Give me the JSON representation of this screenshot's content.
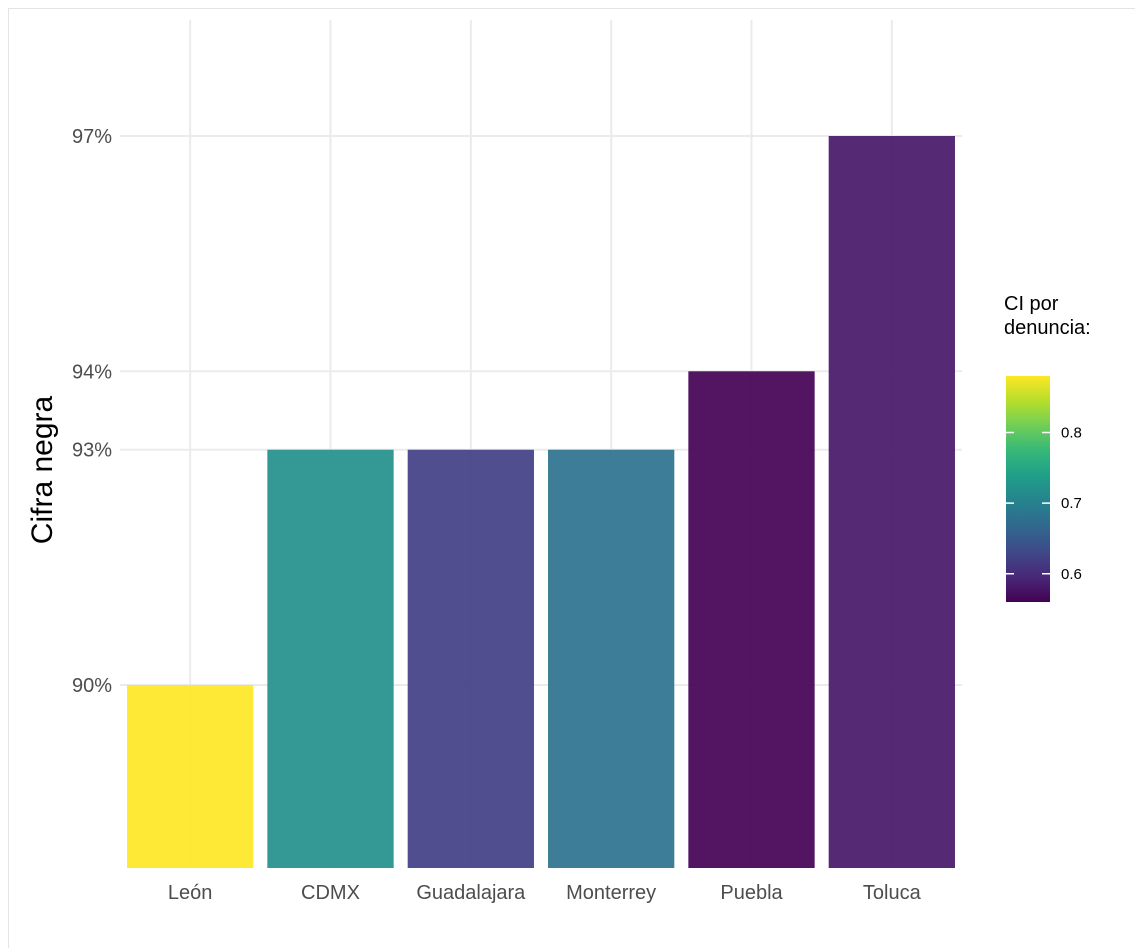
{
  "chart_data": {
    "type": "bar",
    "categories": [
      "León",
      "CDMX",
      "Guadalajara",
      "Monterrey",
      "Puebla",
      "Toluca"
    ],
    "values": [
      90,
      93,
      93,
      93,
      94,
      97
    ],
    "fill_values": [
      0.88,
      0.72,
      0.62,
      0.68,
      0.56,
      0.58
    ],
    "y_ticks": [
      90,
      93,
      94,
      97
    ],
    "y_tick_labels": [
      "90%",
      "93%",
      "94%",
      "97%"
    ],
    "ylabel": "Cifra negra",
    "xlabel": "",
    "legend": {
      "title_lines": [
        "CI por",
        "denuncia:"
      ],
      "ticks": [
        0.6,
        0.7,
        0.8
      ],
      "tick_labels": [
        "0.6",
        "0.7",
        "0.8"
      ],
      "range": [
        0.56,
        0.88
      ],
      "placement": "right"
    },
    "colormap": [
      "#440154",
      "#482878",
      "#3e4989",
      "#31688e",
      "#26828e",
      "#1f9e89",
      "#35b779",
      "#6ece58",
      "#b5de2b",
      "#fde725"
    ],
    "grid": true
  }
}
